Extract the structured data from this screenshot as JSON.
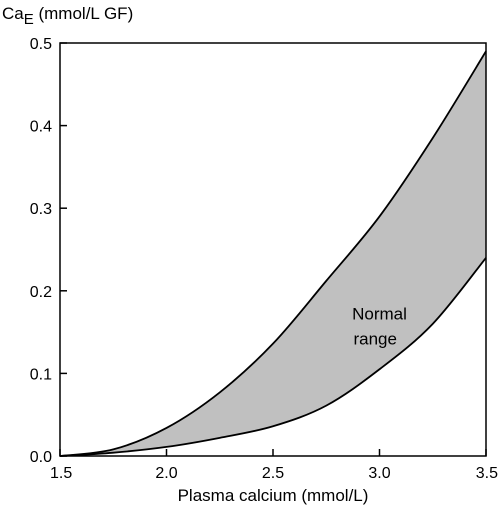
{
  "chart_data": {
    "type": "area",
    "ylabel_main": "Ca",
    "ylabel_sub": "E",
    "ylabel_rest": " (mmol/L GF)",
    "xlabel": "Plasma calcium (mmol/L)",
    "xlim": [
      1.5,
      3.5
    ],
    "ylim": [
      0.0,
      0.5
    ],
    "x_ticks": [
      1.5,
      2.0,
      2.5,
      3.0,
      3.5
    ],
    "x_tick_labels": [
      "1.5",
      "2.0",
      "2.5",
      "3.0",
      "3.5"
    ],
    "y_ticks": [
      0.0,
      0.1,
      0.2,
      0.3,
      0.4,
      0.5
    ],
    "y_tick_labels": [
      "0.0",
      "0.1",
      "0.2",
      "0.3",
      "0.4",
      "0.5"
    ],
    "grid": false,
    "band": {
      "x": [
        1.5,
        1.75,
        2.0,
        2.25,
        2.5,
        2.75,
        3.0,
        3.25,
        3.5
      ],
      "upper": [
        0.0,
        0.008,
        0.034,
        0.077,
        0.136,
        0.212,
        0.29,
        0.385,
        0.49
      ],
      "lower": [
        0.0,
        0.004,
        0.011,
        0.022,
        0.036,
        0.061,
        0.105,
        0.16,
        0.24
      ]
    },
    "annotation_line1": "Normal",
    "annotation_line2": "range",
    "fill_color": "#c0c0c0",
    "line_color": "#000000"
  }
}
